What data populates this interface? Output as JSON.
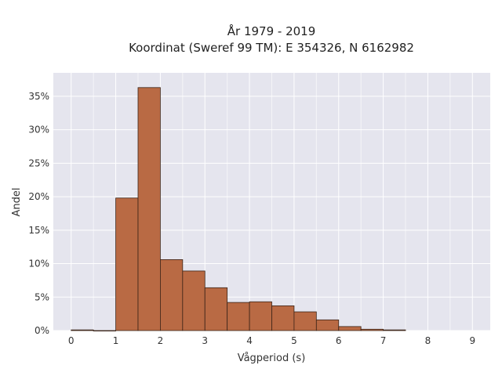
{
  "chart_data": {
    "type": "bar",
    "title_line1": "År 1979 - 2019",
    "title_line2": "Koordinat (Sweref 99 TM): E 354326, N 6162982",
    "xlabel": "Vågperiod (s)",
    "ylabel": "Andel",
    "xlim": [
      -0.4,
      9.4
    ],
    "ylim": [
      0,
      38.5
    ],
    "x_ticks": [
      0,
      1,
      2,
      3,
      4,
      5,
      6,
      7,
      8,
      9
    ],
    "y_ticks": [
      0,
      5,
      10,
      15,
      20,
      25,
      30,
      35
    ],
    "y_tick_suffix": "%",
    "bin_width": 0.5,
    "bins": [
      {
        "x0": 0.0,
        "value": 0.1
      },
      {
        "x0": 0.5,
        "value": 0.0
      },
      {
        "x0": 1.0,
        "value": 19.8
      },
      {
        "x0": 1.5,
        "value": 36.3
      },
      {
        "x0": 2.0,
        "value": 10.6
      },
      {
        "x0": 2.5,
        "value": 8.9
      },
      {
        "x0": 3.0,
        "value": 6.4
      },
      {
        "x0": 3.5,
        "value": 4.2
      },
      {
        "x0": 4.0,
        "value": 4.3
      },
      {
        "x0": 4.5,
        "value": 3.7
      },
      {
        "x0": 5.0,
        "value": 2.8
      },
      {
        "x0": 5.5,
        "value": 1.6
      },
      {
        "x0": 6.0,
        "value": 0.6
      },
      {
        "x0": 6.5,
        "value": 0.2
      },
      {
        "x0": 7.0,
        "value": 0.1
      }
    ],
    "plot_background": "#e5e5ee",
    "bar_color": "#b96a44",
    "grid": true
  }
}
